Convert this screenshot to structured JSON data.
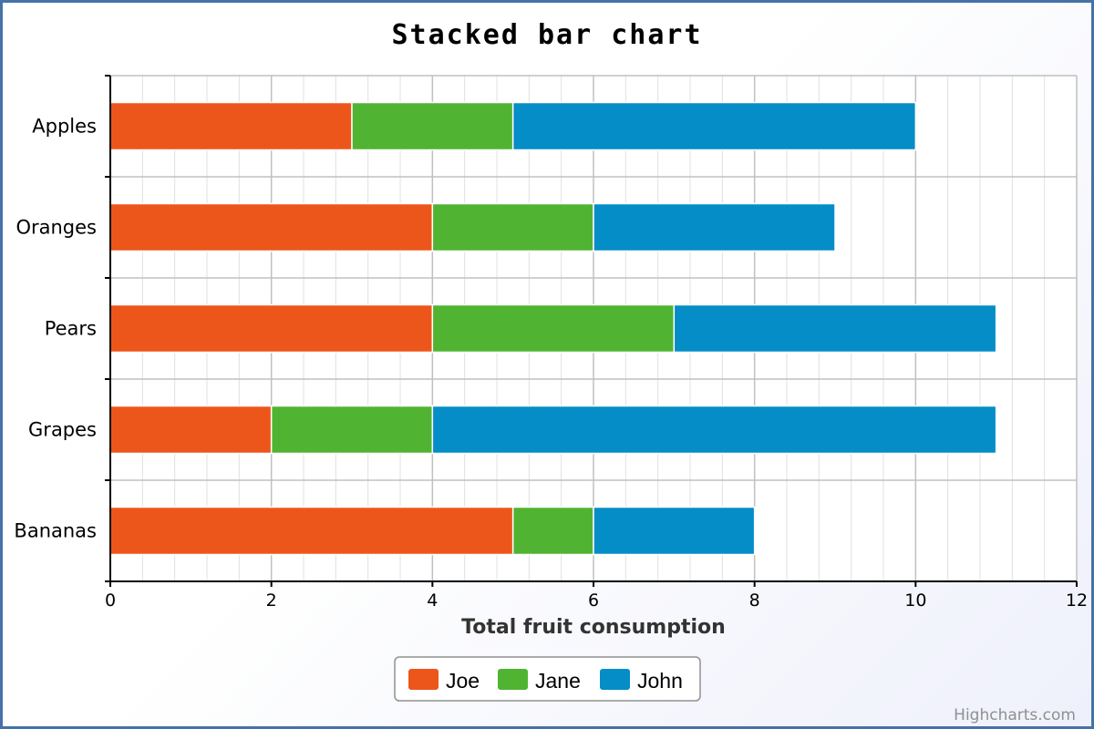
{
  "chart_data": {
    "type": "bar",
    "orientation": "horizontal",
    "stacked": true,
    "title": "Stacked bar chart",
    "xlabel": "Total fruit consumption",
    "ylabel": "",
    "categories": [
      "Apples",
      "Oranges",
      "Pears",
      "Grapes",
      "Bananas"
    ],
    "series": [
      {
        "name": "Joe",
        "color": "#ED561B",
        "values": [
          3,
          4,
          4,
          2,
          5
        ]
      },
      {
        "name": "Jane",
        "color": "#50B432",
        "values": [
          2,
          2,
          3,
          2,
          1
        ]
      },
      {
        "name": "John",
        "color": "#058DC7",
        "values": [
          5,
          3,
          4,
          7,
          2
        ]
      }
    ],
    "xlim": [
      0,
      12
    ],
    "tick_values": [
      0,
      2,
      4,
      6,
      8,
      10,
      12
    ],
    "minor_tick_step": 0.4,
    "grid": true,
    "legend_position": "bottom-center"
  },
  "credit": "Highcharts.com",
  "colors": {
    "border": "#4572A7",
    "grid_major": "#C0C0C0",
    "grid_minor": "#E0E0E0",
    "axis": "#000000",
    "legend_border": "#909090"
  }
}
